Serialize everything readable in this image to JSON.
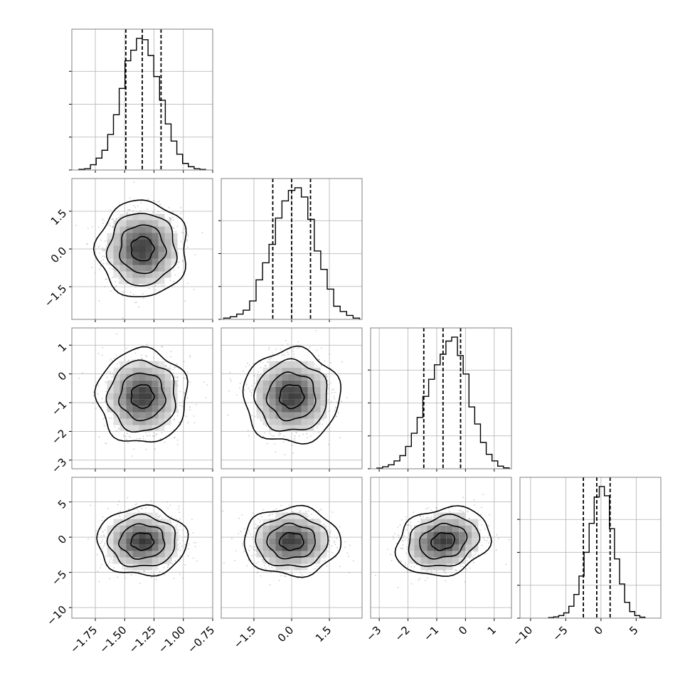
{
  "chart_data": {
    "type": "corner",
    "parameters": [
      {
        "range": [
          -1.95,
          -0.75
        ],
        "ticks": [
          -1.75,
          -1.5,
          -1.25,
          -1.0,
          -0.75
        ],
        "tick_labels": [
          "−1.75",
          "−1.50",
          "−1.25",
          "−1.00",
          "−0.75"
        ],
        "quantiles": [
          -1.49,
          -1.35,
          -1.19
        ],
        "hist": [
          0.005,
          0.01,
          0.04,
          0.09,
          0.15,
          0.27,
          0.42,
          0.62,
          0.83,
          0.91,
          1.0,
          0.99,
          0.87,
          0.71,
          0.53,
          0.35,
          0.22,
          0.12,
          0.05,
          0.025,
          0.01,
          0.004
        ]
      },
      {
        "range": [
          -2.8,
          2.8
        ],
        "ticks": [
          -1.5,
          0.0,
          1.5
        ],
        "tick_labels": [
          "−1.5",
          "0.0",
          "1.5"
        ],
        "quantiles": [
          -0.75,
          0.0,
          0.75
        ],
        "hist": [
          0.01,
          0.02,
          0.04,
          0.07,
          0.14,
          0.3,
          0.43,
          0.57,
          0.77,
          0.9,
          0.98,
          1.0,
          0.93,
          0.76,
          0.52,
          0.38,
          0.23,
          0.1,
          0.06,
          0.03,
          0.01
        ]
      },
      {
        "range": [
          -3.3,
          1.6
        ],
        "ticks": [
          -3,
          -2,
          -1,
          0,
          1
        ],
        "tick_labels": [
          "−3",
          "−2",
          "−1",
          "0",
          "1"
        ],
        "quantiles": [
          -1.45,
          -0.78,
          -0.17
        ],
        "hist": [
          0.005,
          0.015,
          0.03,
          0.06,
          0.1,
          0.17,
          0.27,
          0.39,
          0.55,
          0.68,
          0.79,
          0.87,
          0.97,
          1.0,
          0.86,
          0.72,
          0.47,
          0.34,
          0.2,
          0.11,
          0.06,
          0.02,
          0.007
        ]
      },
      {
        "range": [
          -11.5,
          8.5
        ],
        "ticks": [
          -10,
          -5,
          0,
          5
        ],
        "tick_labels": [
          "−10",
          "−5",
          "0",
          "5"
        ],
        "quantiles": [
          -2.5,
          -0.6,
          1.3
        ],
        "hist": [
          0.004,
          0.01,
          0.02,
          0.04,
          0.09,
          0.18,
          0.32,
          0.5,
          0.72,
          0.92,
          1.0,
          0.93,
          0.68,
          0.45,
          0.26,
          0.12,
          0.05,
          0.02,
          0.008
        ]
      }
    ],
    "correlations": {
      "1-0": 0.0,
      "2-0": 0.0,
      "2-1": 0.0,
      "3-0": 0.0,
      "3-1": 0.0,
      "3-2": 0.2
    },
    "contour_levels_sigma": [
      0.5,
      1.0,
      1.5,
      2.0
    ],
    "grid": true,
    "colors": {
      "line": "#000000",
      "grid": "#b0b0b0",
      "points": "#9a9a9a",
      "frame": "#808080"
    }
  }
}
